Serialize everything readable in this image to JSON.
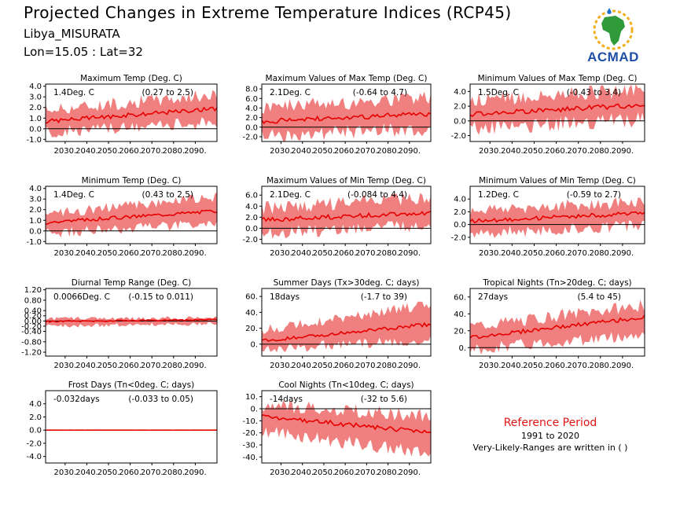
{
  "header": {
    "title": "Projected Changes in Extreme Temperature Indices (RCP45)",
    "station": "Libya_MISURATA",
    "coords": "Lon=15.05 : Lat=32",
    "logo_text": "ACMAD"
  },
  "reference": {
    "title": "Reference Period",
    "years": "1991 to 2020",
    "note": "Very-Likely-Ranges are written in ( )"
  },
  "colors": {
    "band": "#f08080",
    "line": "#e60000",
    "zero_line": "#000000"
  },
  "chart_data": [
    {
      "type": "area",
      "title": "Maximum Temp (Deg. C)",
      "value_label": "1.4Deg. C",
      "range_label": "(0.27 to 2.5)",
      "x": [
        2021,
        2100
      ],
      "xticks": [
        "2030.",
        "2040.",
        "2050.",
        "2060.",
        "2070.",
        "2080.",
        "2090."
      ],
      "ylim": [
        -1.2,
        4.2
      ],
      "yticks": [
        -1.0,
        0.0,
        1.0,
        2.0,
        3.0,
        4.0
      ],
      "ytick_labels": [
        "-1.0",
        "0.0",
        "1.0",
        "2.0",
        "3.0",
        "4.0"
      ],
      "mean_start": 0.7,
      "mean_end": 1.9,
      "band_low_start": -0.4,
      "band_low_end": 0.6,
      "band_high_start": 1.8,
      "band_high_end": 3.2
    },
    {
      "type": "area",
      "title": "Maximum Values of Max Temp (Deg. C)",
      "value_label": "2.1Deg. C",
      "range_label": "(-0.64 to 4.7)",
      "x": [
        2021,
        2100
      ],
      "xticks": [
        "2030.",
        "2040.",
        "2050.",
        "2060.",
        "2070.",
        "2080.",
        "2090."
      ],
      "ylim": [
        -3.0,
        9.0
      ],
      "yticks": [
        -2.0,
        0.0,
        2.0,
        4.0,
        6.0,
        8.0
      ],
      "ytick_labels": [
        "-2.0",
        "0.0",
        "2.0",
        "4.0",
        "6.0",
        "8.0"
      ],
      "mean_start": 1.2,
      "mean_end": 2.8,
      "band_low_start": -1.6,
      "band_low_end": -0.4,
      "band_high_start": 4.2,
      "band_high_end": 6.2
    },
    {
      "type": "area",
      "title": "Minimum Values of Max Temp (Deg. C)",
      "value_label": "1.5Deg. C",
      "range_label": "(-0.43 to 3.4)",
      "x": [
        2021,
        2100
      ],
      "xticks": [
        "2030.",
        "2040.",
        "2050.",
        "2060.",
        "2070.",
        "2080.",
        "2090."
      ],
      "ylim": [
        -2.8,
        5.0
      ],
      "yticks": [
        -2.0,
        0.0,
        2.0,
        4.0
      ],
      "ytick_labels": [
        "-2.0",
        "0.0",
        "2.0",
        "4.0"
      ],
      "mean_start": 0.9,
      "mean_end": 2.2,
      "band_low_start": -1.0,
      "band_low_end": 0.2,
      "band_high_start": 2.8,
      "band_high_end": 4.2
    },
    {
      "type": "area",
      "title": "Minimum Temp (Deg. C)",
      "value_label": "1.4Deg. C",
      "range_label": "(0.43 to 2.5)",
      "x": [
        2021,
        2100
      ],
      "xticks": [
        "2030.",
        "2040.",
        "2050.",
        "2060.",
        "2070.",
        "2080.",
        "2090."
      ],
      "ylim": [
        -1.2,
        4.2
      ],
      "yticks": [
        -1.0,
        0.0,
        1.0,
        2.0,
        3.0,
        4.0
      ],
      "ytick_labels": [
        "-1.0",
        "0.0",
        "1.0",
        "2.0",
        "3.0",
        "4.0"
      ],
      "mean_start": 0.8,
      "mean_end": 1.9,
      "band_low_start": -0.2,
      "band_low_end": 0.7,
      "band_high_start": 1.6,
      "band_high_end": 3.2
    },
    {
      "type": "area",
      "title": "Maximum Values of Min Temp (Deg. C)",
      "value_label": "2.1Deg. C",
      "range_label": "(-0.084 to 4.4)",
      "x": [
        2021,
        2100
      ],
      "xticks": [
        "2030.",
        "2040.",
        "2050.",
        "2060.",
        "2070.",
        "2080.",
        "2090."
      ],
      "ylim": [
        -2.8,
        7.6
      ],
      "yticks": [
        -2.0,
        0.0,
        2.0,
        4.0,
        6.0
      ],
      "ytick_labels": [
        "-2.0",
        "0.0",
        "2.0",
        "4.0",
        "6.0"
      ],
      "mean_start": 1.5,
      "mean_end": 2.8,
      "band_low_start": -0.9,
      "band_low_end": 0.6,
      "band_high_start": 3.6,
      "band_high_end": 5.6
    },
    {
      "type": "area",
      "title": "Minimum Values of Min Temp (Deg. C)",
      "value_label": "1.2Deg. C",
      "range_label": "(-0.59 to 2.7)",
      "x": [
        2021,
        2100
      ],
      "xticks": [
        "2030.",
        "2040.",
        "2050.",
        "2060.",
        "2070.",
        "2080.",
        "2090."
      ],
      "ylim": [
        -3.0,
        6.0
      ],
      "yticks": [
        -2.0,
        0.0,
        2.0,
        4.0
      ],
      "ytick_labels": [
        "-2.0",
        "0.0",
        "2.0",
        "4.0"
      ],
      "mean_start": 0.5,
      "mean_end": 1.8,
      "band_low_start": -1.4,
      "band_low_end": -0.1,
      "band_high_start": 2.2,
      "band_high_end": 3.6
    },
    {
      "type": "area",
      "title": "Diurnal Temp Range (Deg. C)",
      "value_label": "0.0066Deg. C",
      "range_label": "(-0.15 to 0.011)",
      "x": [
        2021,
        2100
      ],
      "xticks": [
        "2030.",
        "2040.",
        "2050.",
        "2060.",
        "2070.",
        "2080.",
        "2090."
      ],
      "ylim": [
        -1.35,
        1.25
      ],
      "yticks": [
        -1.2,
        -0.8,
        -0.4,
        -0.2,
        0.0,
        0.2,
        0.4,
        0.8,
        1.2
      ],
      "ytick_labels": [
        "-1.20",
        "-0.80",
        "-0.40",
        "-0.20",
        "0.00",
        "0.20",
        "0.40",
        "0.80",
        "1.20"
      ],
      "mean_start": -0.02,
      "mean_end": 0.05,
      "band_low_start": -0.2,
      "band_low_end": -0.1,
      "band_high_start": 0.08,
      "band_high_end": 0.12
    },
    {
      "type": "area",
      "title": "Summer Days (Tx>30deg. C; days)",
      "value_label": "18days",
      "range_label": "(-1.7 to 39)",
      "x": [
        2021,
        2100
      ],
      "xticks": [
        "2030.",
        "2040.",
        "2050.",
        "2060.",
        "2070.",
        "2080.",
        "2090."
      ],
      "ylim": [
        -15.0,
        70.0
      ],
      "yticks": [
        0,
        20,
        40,
        60
      ],
      "ytick_labels": [
        "0.",
        "20.",
        "40.",
        "60."
      ],
      "mean_start": 4.0,
      "mean_end": 25.0,
      "band_low_start": -6.0,
      "band_low_end": 5.0,
      "band_high_start": 18.0,
      "band_high_end": 50.0
    },
    {
      "type": "area",
      "title": "Tropical Nights (Tn>20deg. C; days)",
      "value_label": "27days",
      "range_label": "(5.4 to 45)",
      "x": [
        2021,
        2100
      ],
      "xticks": [
        "2030.",
        "2040.",
        "2050.",
        "2060.",
        "2070.",
        "2080.",
        "2090."
      ],
      "ylim": [
        -10.0,
        70.0
      ],
      "yticks": [
        0,
        20,
        40,
        60
      ],
      "ytick_labels": [
        "0.",
        "20.",
        "40.",
        "60."
      ],
      "mean_start": 12.0,
      "mean_end": 36.0,
      "band_low_start": -2.0,
      "band_low_end": 15.0,
      "band_high_start": 25.0,
      "band_high_end": 50.0
    },
    {
      "type": "area",
      "title": "Frost Days (Tn<0deg. C; days)",
      "value_label": "-0.032days",
      "range_label": "(-0.033 to 0.05)",
      "x": [
        2021,
        2100
      ],
      "xticks": [
        "2030.",
        "2040.",
        "2050.",
        "2060.",
        "2070.",
        "2080.",
        "2090."
      ],
      "ylim": [
        -5.0,
        6.0
      ],
      "yticks": [
        -4.0,
        -2.0,
        0.0,
        2.0,
        4.0
      ],
      "ytick_labels": [
        "-4.0",
        "-2.0",
        "0.0",
        "2.0",
        "4.0"
      ],
      "mean_start": 0.0,
      "mean_end": 0.0,
      "band_low_start": -0.05,
      "band_low_end": -0.05,
      "band_high_start": 0.05,
      "band_high_end": 0.05
    },
    {
      "type": "area",
      "title": "Cool Nights (Tn<10deg. C; days)",
      "value_label": "-14days",
      "range_label": "(-32 to 5.6)",
      "x": [
        2021,
        2100
      ],
      "xticks": [
        "2030.",
        "2040.",
        "2050.",
        "2060.",
        "2070.",
        "2080.",
        "2090."
      ],
      "ylim": [
        -45.0,
        15.0
      ],
      "yticks": [
        -40,
        -30,
        -20,
        -10,
        0,
        10
      ],
      "ytick_labels": [
        "-40.",
        "-30.",
        "-20.",
        "-10.",
        "0.",
        "10."
      ],
      "mean_start": -6.0,
      "mean_end": -20.0,
      "band_low_start": -18.0,
      "band_low_end": -38.0,
      "band_high_start": 3.0,
      "band_high_end": -6.0
    }
  ]
}
